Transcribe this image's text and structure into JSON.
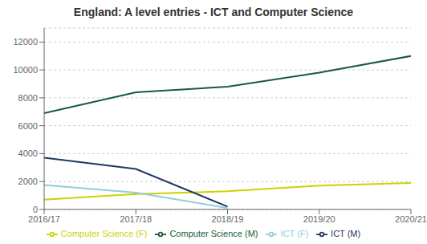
{
  "chart_data": {
    "type": "line",
    "title": "England: A level entries - ICT and Computer Science",
    "categories": [
      "2016/17",
      "2017/18",
      "2018/19",
      "2019/20",
      "2020/21"
    ],
    "series": [
      {
        "name": "Computer Science (M)",
        "color": "#1a5c38",
        "values": [
          6900,
          8400,
          8800,
          9800,
          11000
        ]
      },
      {
        "name": "Computer Science (F)",
        "color": "#c8d400",
        "values": [
          700,
          1100,
          1300,
          1700,
          1900
        ]
      },
      {
        "name": "ICT (M)",
        "color": "#1f3864",
        "values": [
          3700,
          2900,
          200,
          null,
          null
        ]
      },
      {
        "name": "ICT (F)",
        "color": "#92cddc",
        "values": [
          1750,
          1200,
          100,
          null,
          null
        ]
      }
    ],
    "ylim": [
      0,
      13000
    ],
    "yticks": [
      0,
      2000,
      4000,
      6000,
      8000,
      10000,
      12000
    ],
    "grid": true,
    "legend": "bottom"
  }
}
